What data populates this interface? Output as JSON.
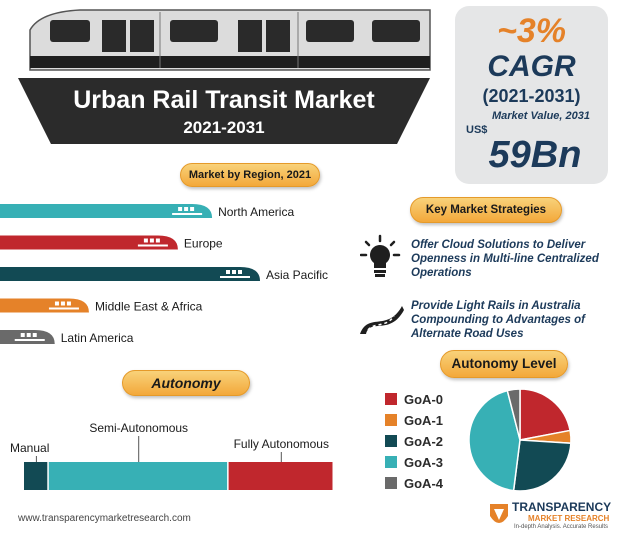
{
  "title": "Urban Rail Transit Market",
  "years": "2021-2031",
  "stats": {
    "cagr_value": "~3%",
    "cagr_label": "CAGR",
    "cagr_period": "(2021-2031)",
    "market_value_label": "Market Value, 2031",
    "currency": "US$",
    "market_value": "59Bn"
  },
  "colors": {
    "teal": "#37b0b5",
    "red": "#c0272d",
    "dark_teal": "#124a54",
    "orange": "#e58229",
    "gray": "#6a6a6a",
    "navy": "#1c3a5a"
  },
  "region_section": {
    "label": "Market by Region, 2021"
  },
  "strategies": {
    "label": "Key Market Strategies",
    "items": [
      {
        "icon": "lightbulb-icon",
        "text": "Offer Cloud Solutions to Deliver Openness in Multi-line Centralized Operations"
      },
      {
        "icon": "road-icon",
        "text": "Provide Light Rails in Australia Compounding to Advantages of Alternate Road Uses"
      }
    ]
  },
  "autonomy_section": {
    "label": "Autonomy"
  },
  "autonomy_level_section": {
    "label": "Autonomy Level"
  },
  "footer": {
    "url": "www.transparencymarketresearch.com",
    "logo_line1": "TRANSPARENCY",
    "logo_line2": "MARKET RESEARCH",
    "logo_tagline": "In-depth Analysis. Accurate Results"
  },
  "chart_data": [
    {
      "type": "bar",
      "title": "Market by Region, 2021",
      "categories": [
        "North America",
        "Europe",
        "Asia Pacific",
        "Middle East & Africa",
        "Latin America"
      ],
      "values": [
        31,
        26,
        38,
        13,
        8
      ],
      "colors": [
        "#37b0b5",
        "#c0272d",
        "#124a54",
        "#e58229",
        "#6a6a6a"
      ]
    },
    {
      "type": "bar",
      "title": "Autonomy",
      "categories": [
        "Manual",
        "Semi-Autonomous",
        "Fully Autonomous"
      ],
      "values": [
        8,
        58,
        34
      ],
      "colors": [
        "#124a54",
        "#37b0b5",
        "#c0272d"
      ]
    },
    {
      "type": "pie",
      "title": "Autonomy Level",
      "categories": [
        "GoA-0",
        "GoA-1",
        "GoA-2",
        "GoA-3",
        "GoA-4"
      ],
      "values": [
        22,
        4,
        26,
        44,
        4
      ],
      "colors": [
        "#c0272d",
        "#e58229",
        "#124a54",
        "#37b0b5",
        "#6a6a6a"
      ]
    }
  ]
}
